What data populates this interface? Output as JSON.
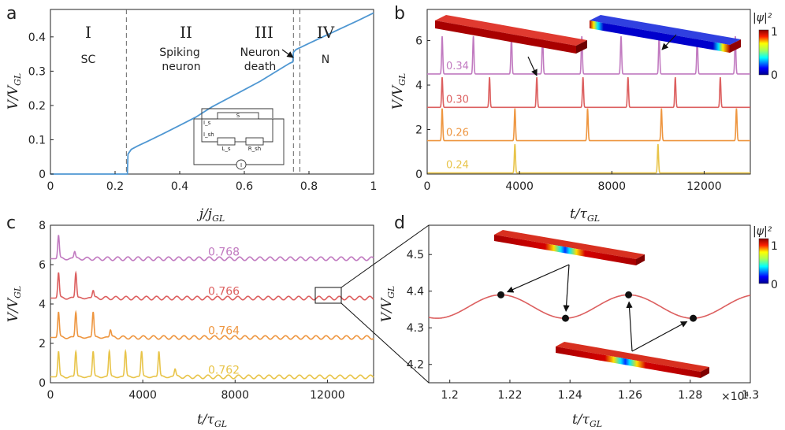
{
  "colors": {
    "blue": "#4f97d2",
    "purple": "#c17ac0",
    "red": "#dc5f5f",
    "orange": "#ee9640",
    "yellow": "#e8c449"
  },
  "chart_data": [
    {
      "id": "a",
      "panel_label": "a",
      "type": "line",
      "xlabel": "j/j_GL",
      "ylabel": "V/V_GL",
      "xlim": [
        0,
        1
      ],
      "ylim": [
        0,
        0.48
      ],
      "xticks": [
        "0",
        "0.2",
        "0.4",
        "0.6",
        "0.8",
        "1"
      ],
      "yticks": [
        "0",
        "0.1",
        "0.2",
        "0.3",
        "0.4"
      ],
      "x": [
        0,
        0.238,
        0.24,
        0.25,
        0.27,
        0.3,
        0.35,
        0.4,
        0.45,
        0.48,
        0.5,
        0.55,
        0.6,
        0.65,
        0.7,
        0.74,
        0.75,
        0.752,
        0.76,
        0.8,
        0.85,
        0.9,
        0.95,
        1.0
      ],
      "y": [
        0,
        0,
        0.058,
        0.072,
        0.082,
        0.095,
        0.118,
        0.142,
        0.166,
        0.184,
        0.196,
        0.221,
        0.246,
        0.271,
        0.3,
        0.323,
        0.327,
        0.355,
        0.363,
        0.381,
        0.403,
        0.425,
        0.447,
        0.47
      ],
      "dashed_lines_x": [
        0.235,
        0.752,
        0.772
      ],
      "regions": [
        {
          "numeral": "I",
          "label": "SC"
        },
        {
          "numeral": "II",
          "label1": "Spiking",
          "label2": "neuron"
        },
        {
          "numeral": "III",
          "label1": "Neuron",
          "label2": "death"
        },
        {
          "numeral": "IV",
          "label": "N"
        }
      ],
      "circuit_labels": {
        "s": "S",
        "is": "I_s",
        "ish": "I_sh",
        "ls": "L_s",
        "rsh": "R_sh",
        "src": "I"
      }
    },
    {
      "id": "b",
      "panel_label": "b",
      "type": "line",
      "xlabel": "t/τ_GL",
      "ylabel": "V/V_GL",
      "xlim": [
        0,
        14000
      ],
      "ylim": [
        0,
        7.4
      ],
      "xticks": [
        "0",
        "4000",
        "8000",
        "12000"
      ],
      "yticks": [
        "0",
        "2",
        "4",
        "6"
      ],
      "colorbar": {
        "label": "|ψ|²",
        "max": "1",
        "min": "0"
      },
      "series": [
        {
          "name": "0.34",
          "baseline": 4.5,
          "spike_height": 1.7,
          "spikes": [
            650,
            2000,
            3650,
            5000,
            6700,
            8400,
            10050,
            11700,
            13350
          ]
        },
        {
          "name": "0.30",
          "baseline": 3.0,
          "spike_height": 1.35,
          "spikes": [
            650,
            2700,
            4750,
            6750,
            8700,
            10750,
            12700
          ]
        },
        {
          "name": "0.26",
          "baseline": 1.5,
          "spike_height": 1.45,
          "spikes": [
            650,
            3800,
            6950,
            10150,
            13400
          ]
        },
        {
          "name": "0.24",
          "baseline": 0.05,
          "spike_height": 1.3,
          "spikes": [
            3800,
            10000
          ]
        }
      ]
    },
    {
      "id": "c",
      "panel_label": "c",
      "type": "line",
      "xlabel": "t/τ_GL",
      "ylabel": "V/V_GL",
      "xlim": [
        0,
        14000
      ],
      "ylim": [
        0,
        8
      ],
      "xticks": [
        "0",
        "4000",
        "8000",
        "12000"
      ],
      "yticks": [
        "0",
        "2",
        "4",
        "6",
        "8"
      ],
      "series": [
        {
          "name": "0.768",
          "baseline": 6.3,
          "spike_height": 1.2,
          "spikes": [
            350
          ],
          "small_spikes": [
            1050
          ]
        },
        {
          "name": "0.766",
          "baseline": 4.3,
          "spike_height": 1.3,
          "spikes": [
            350,
            1100
          ],
          "small_spikes": [
            1850
          ]
        },
        {
          "name": "0.764",
          "baseline": 2.3,
          "spike_height": 1.3,
          "spikes": [
            350,
            1100,
            1850
          ],
          "small_spikes": [
            2600
          ]
        },
        {
          "name": "0.762",
          "baseline": 0.3,
          "spike_height": 1.3,
          "spikes": [
            350,
            1100,
            1850,
            2550,
            3250,
            3950,
            4700
          ],
          "small_spikes": [
            5400
          ]
        }
      ]
    },
    {
      "id": "d",
      "panel_label": "d",
      "type": "line",
      "xlabel": "t/τ_GL",
      "ylabel": "V/V_GL",
      "exponent_label": "×10⁴",
      "xlim": [
        1.193,
        1.3
      ],
      "ylim": [
        4.15,
        4.58
      ],
      "xticks": [
        "1.2",
        "1.22",
        "1.24",
        "1.26",
        "1.28",
        "1.3"
      ],
      "yticks": [
        "4.2",
        "4.3",
        "4.4",
        "4.5"
      ],
      "colorbar": {
        "label": "|ψ|²",
        "max": "1",
        "min": "0"
      },
      "oscillation": {
        "center": 4.358,
        "amplitude": 0.032,
        "period": 0.0425,
        "first_max": 1.217
      },
      "markers_x": [
        1.217,
        1.2385,
        1.2595,
        1.281
      ]
    }
  ]
}
